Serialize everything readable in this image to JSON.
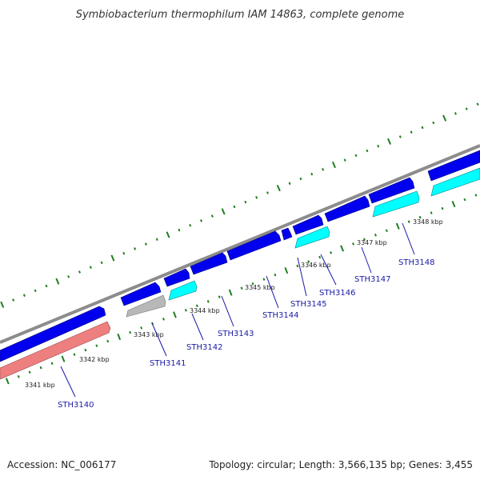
{
  "title": "Symbiobacterium thermophilum IAM 14863, complete genome",
  "colors": {
    "forward": "#0000ee",
    "reverse_cyan": "#00ffff",
    "reverse_gray": "#b8b8b8",
    "reverse_pink": "#ee7f7f",
    "backbone": "#8c8c8c",
    "ticks": "#1f7f1f",
    "label": "#1a1aa6"
  },
  "scale_labels": [
    "3341 kbp",
    "3342 kbp",
    "3343 kbp",
    "3344 kbp",
    "3345 kbp",
    "3346 kbp",
    "3347 kbp",
    "3348 kbp"
  ],
  "genes": [
    {
      "label": "STH3140",
      "strand": "forward",
      "color": "#0000ee"
    },
    {
      "label": "STH3140",
      "strand": "reverse",
      "color": "#ee7f7f"
    },
    {
      "label": "STH3141",
      "strand": "reverse",
      "color": "#b8b8b8"
    },
    {
      "label": "STH3142",
      "strand": "reverse",
      "color": "#00ffff"
    },
    {
      "label": "STH3143",
      "strand": "forward",
      "color": "#0000ee"
    },
    {
      "label": "STH3144",
      "strand": "forward",
      "color": "#0000ee"
    },
    {
      "label": "STH3145",
      "strand": "forward",
      "color": "#0000ee"
    },
    {
      "label": "STH3146",
      "strand": "reverse",
      "color": "#00ffff"
    },
    {
      "label": "STH3147",
      "strand": "forward",
      "color": "#0000ee"
    },
    {
      "label": "STH3148",
      "strand": "reverse",
      "color": "#00ffff"
    }
  ],
  "gene_labels": [
    "STH3140",
    "STH3141",
    "STH3142",
    "STH3143",
    "STH3144",
    "STH3145",
    "STH3146",
    "STH3147",
    "STH3148"
  ],
  "footer": {
    "accession": "Accession: NC_006177",
    "summary": "Topology: circular; Length: 3,566,135 bp; Genes: 3,455"
  }
}
